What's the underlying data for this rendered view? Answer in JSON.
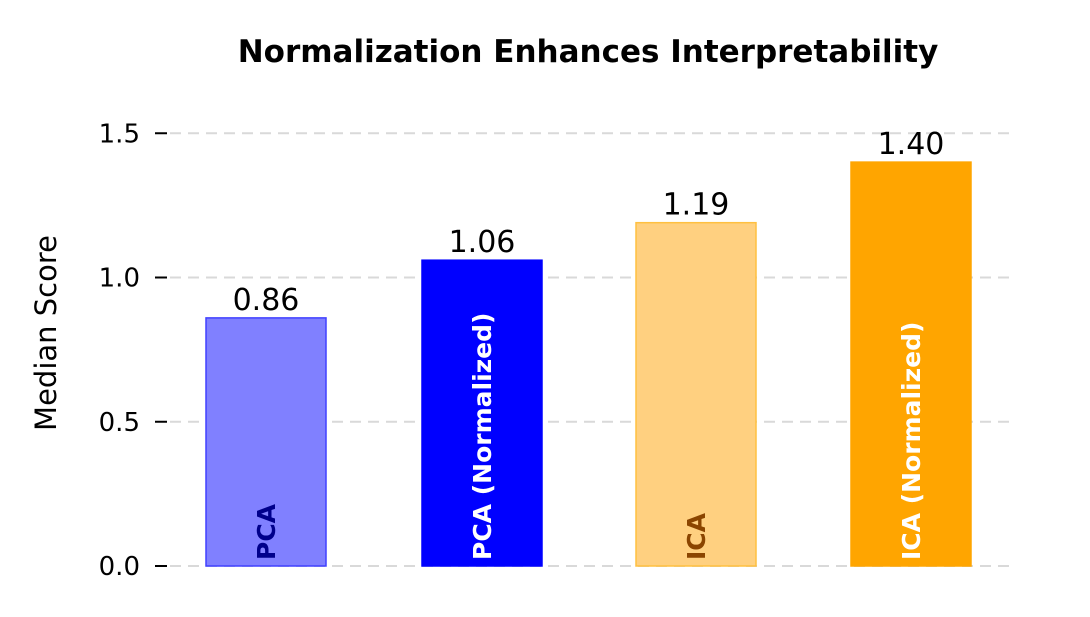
{
  "chart_data": {
    "type": "bar",
    "title": "Normalization Enhances Interpretability",
    "xlabel": "",
    "ylabel": "Median Score",
    "ylim": [
      0,
      1.6
    ],
    "yticks": [
      0.0,
      0.5,
      1.0,
      1.5
    ],
    "ytick_labels": [
      "0.0",
      "0.5",
      "1.0",
      "1.5"
    ],
    "grid": "horizontal dashed",
    "legend": "none",
    "categories": [
      "PCA",
      "PCA (Normalized)",
      "ICA",
      "ICA (Normalized)"
    ],
    "values": [
      0.86,
      1.06,
      1.19,
      1.4
    ],
    "value_labels": [
      "0.86",
      "1.06",
      "1.19",
      "1.40"
    ],
    "bar_colors": [
      "#8080ff",
      "#0000ff",
      "#ffd080",
      "#ffa500"
    ],
    "bar_edge_colors": [
      "#4040ff",
      "#0000ff",
      "#ffc040",
      "#ffa500"
    ],
    "bar_label_colors": [
      "#00008b",
      "#ffffff",
      "#8b4500",
      "#ffffff"
    ]
  }
}
